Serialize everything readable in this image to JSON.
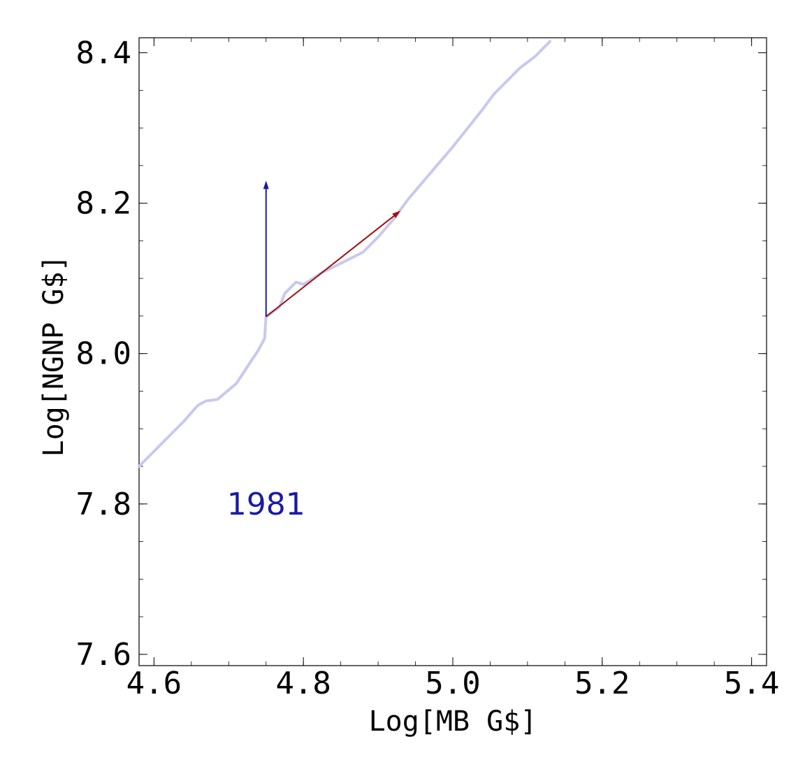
{
  "chart_data": {
    "type": "line",
    "xlabel": "Log[MB G$]",
    "ylabel": "Log[NGNP G$]",
    "xlim": [
      4.58,
      5.42
    ],
    "ylim": [
      7.585,
      8.42
    ],
    "x_ticks": [
      4.6,
      4.8,
      5.0,
      5.2,
      5.4
    ],
    "y_ticks": [
      7.6,
      7.8,
      8.0,
      8.2,
      8.4
    ],
    "x_tick_labels": [
      "4.6",
      "4.8",
      "5.0",
      "5.2",
      "5.4"
    ],
    "y_tick_labels": [
      "7.6",
      "7.8",
      "8.0",
      "8.2",
      "8.4"
    ],
    "grid": false,
    "series": [
      {
        "color": "#c8c8f0",
        "x": [
          4.58,
          4.6,
          4.64,
          4.656,
          4.66,
          4.67,
          4.685,
          4.71,
          4.72,
          4.73,
          4.74,
          4.748,
          4.75,
          4.758,
          4.768,
          4.775,
          4.79,
          4.8,
          4.81,
          4.825,
          4.84,
          4.86,
          4.88,
          4.9,
          4.92,
          4.94,
          4.97,
          5.0,
          5.02,
          5.04,
          5.055,
          5.07,
          5.09,
          5.11,
          5.13
        ],
        "y": [
          7.85,
          7.87,
          7.91,
          7.928,
          7.932,
          7.937,
          7.939,
          7.96,
          7.975,
          7.99,
          8.005,
          8.02,
          8.049,
          8.055,
          8.062,
          8.08,
          8.095,
          8.092,
          8.098,
          8.108,
          8.115,
          8.125,
          8.135,
          8.155,
          8.178,
          8.205,
          8.24,
          8.275,
          8.3,
          8.325,
          8.345,
          8.36,
          8.38,
          8.395,
          8.415
        ]
      }
    ],
    "arrows": [
      {
        "color": "#1a1aa6",
        "from": [
          4.75,
          8.049
        ],
        "to": [
          4.75,
          8.23
        ]
      },
      {
        "color": "#a01010",
        "from": [
          4.75,
          8.049
        ],
        "to": [
          4.93,
          8.19
        ]
      }
    ],
    "annotations": [
      {
        "text": "1981",
        "x": 4.75,
        "y": 7.8,
        "color": "#1a1aa6"
      }
    ]
  }
}
